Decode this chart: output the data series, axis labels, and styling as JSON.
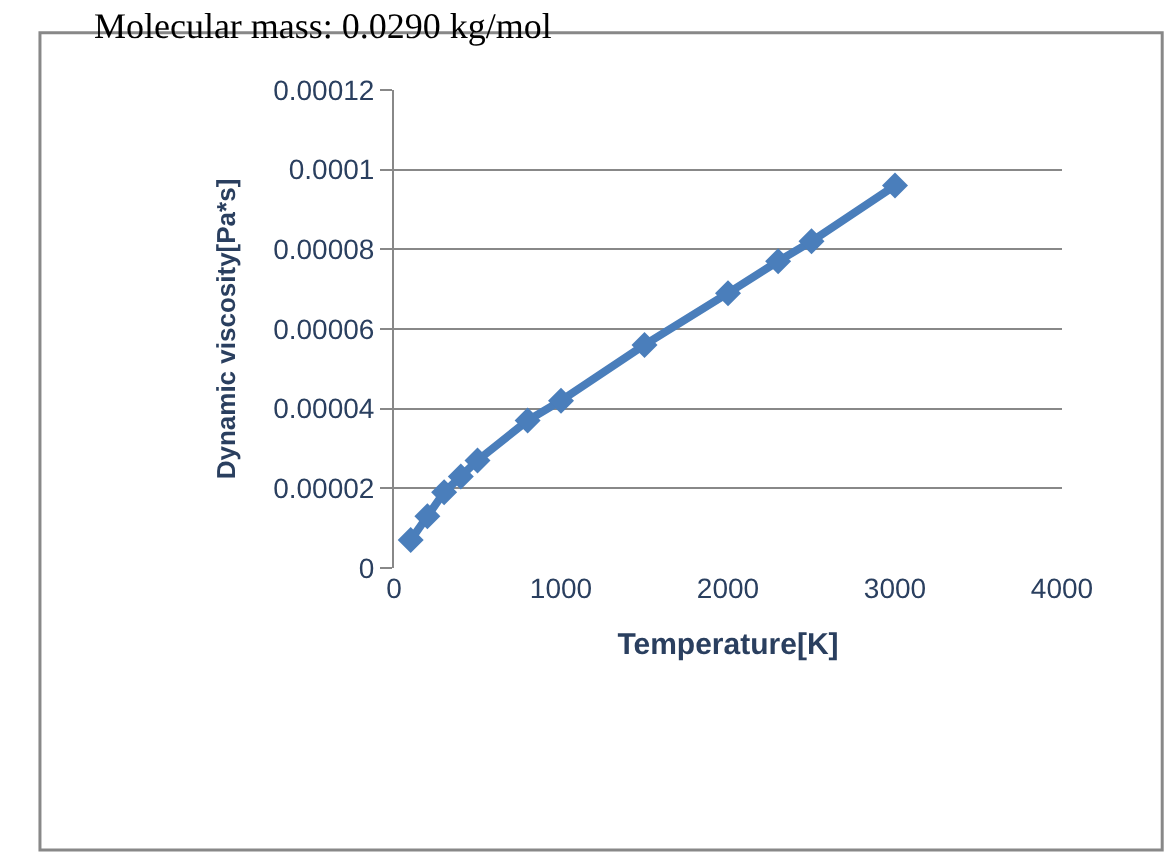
{
  "chart_data": {
    "type": "line",
    "title": "Molecular mass: 0.0290 kg/mol",
    "xlabel": "Temperature[K]",
    "ylabel": "Dynamic viscosity[Pa*s]",
    "x": [
      100,
      200,
      300,
      400,
      500,
      800,
      1000,
      1500,
      2000,
      2300,
      2500,
      3000
    ],
    "series": [
      {
        "color": "#4a7ebb",
        "values": [
          7e-06,
          1.3e-05,
          1.9e-05,
          2.3e-05,
          2.7e-05,
          3.7e-05,
          4.2e-05,
          5.6e-05,
          6.9e-05,
          7.7e-05,
          8.2e-05,
          9.6e-05
        ]
      }
    ],
    "xlim": [
      0,
      4000
    ],
    "xticks": [
      0,
      1000,
      2000,
      3000,
      4000
    ],
    "ylim": [
      0,
      0.00012
    ],
    "yticks": [
      0,
      {
        "value": 2e-05,
        "label": "0.00002"
      },
      {
        "value": 4e-05,
        "label": "0.00004"
      },
      {
        "value": 6e-05,
        "label": "0.00006"
      },
      {
        "value": 8e-05,
        "label": "0.00008"
      },
      {
        "value": 0.0001,
        "label": "0.0001"
      },
      {
        "value": 0.00012,
        "label": "0.00012"
      }
    ],
    "grid": "y",
    "legend": false,
    "marker": "diamond",
    "line_style": "solid"
  }
}
